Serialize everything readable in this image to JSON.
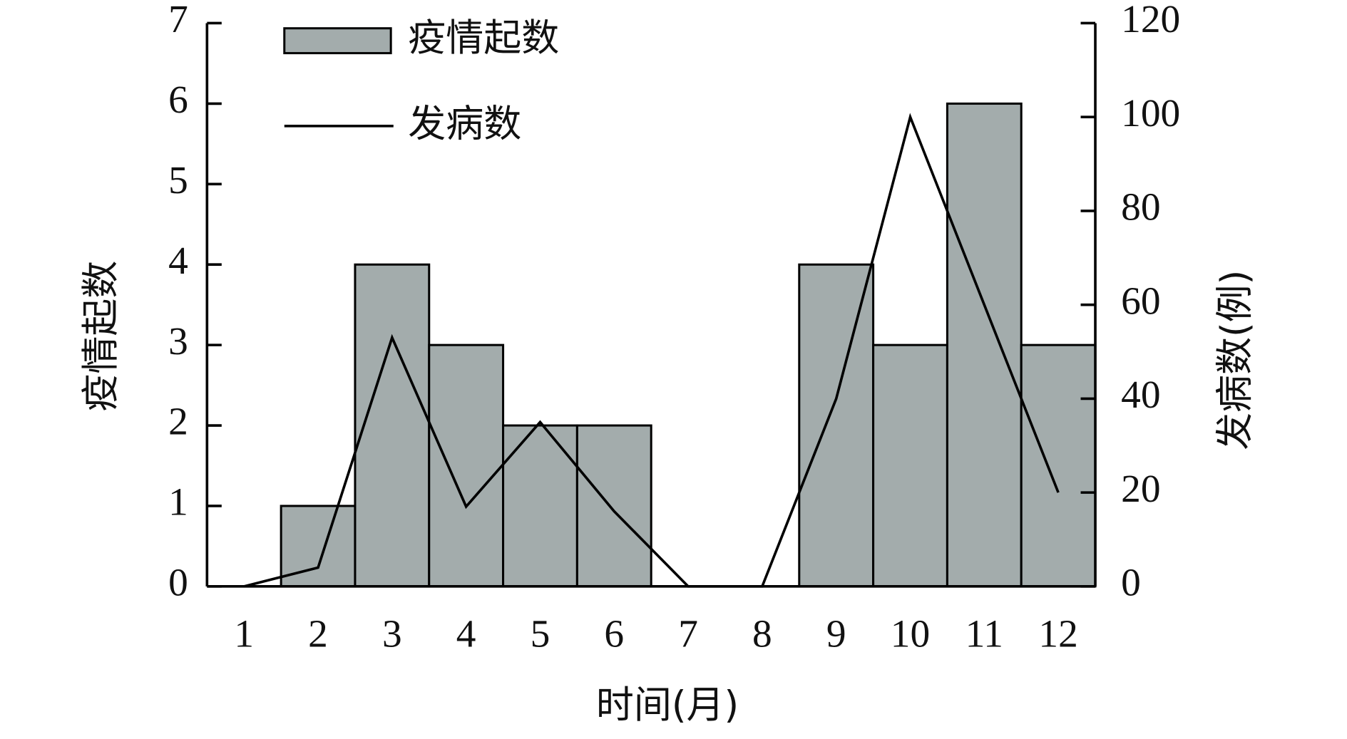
{
  "chart_data": {
    "type": "bar",
    "categories": [
      "1",
      "2",
      "3",
      "4",
      "5",
      "6",
      "7",
      "8",
      "9",
      "10",
      "11",
      "12"
    ],
    "x_label": "时间(月)",
    "y_label": "疫情起数",
    "y2_label": "发病数(例)",
    "series": [
      {
        "name": "疫情起数",
        "type": "bar",
        "color": "#a3acac",
        "values": [
          0,
          1,
          4,
          3,
          2,
          2,
          0,
          0,
          4,
          3,
          6,
          3
        ]
      },
      {
        "name": "发病数",
        "type": "line",
        "axis": "y2",
        "color": "#000000",
        "values": [
          0,
          4,
          53,
          17,
          35,
          16,
          0,
          0,
          40,
          100,
          60,
          20
        ]
      }
    ],
    "ylim": [
      0,
      7
    ],
    "yticks": [
      0,
      1,
      2,
      3,
      4,
      5,
      6,
      7
    ],
    "y2lim": [
      0,
      120
    ],
    "y2ticks": [
      0,
      20,
      40,
      60,
      80,
      100,
      120
    ],
    "legend": "upper left",
    "grid": false
  }
}
